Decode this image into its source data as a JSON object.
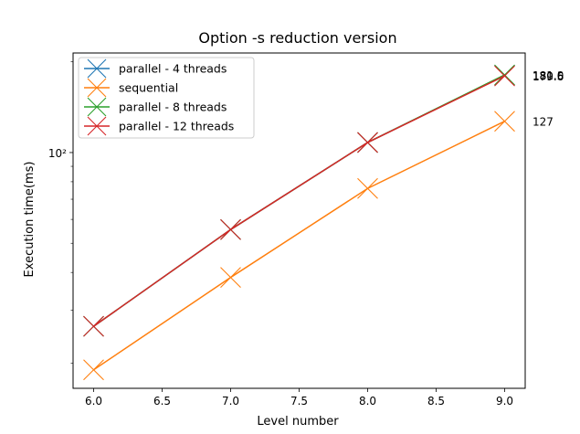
{
  "chart_data": {
    "type": "line",
    "title": "Option -s reduction version",
    "xlabel": "Level number",
    "ylabel": "Execution time(ms)",
    "x": [
      6,
      7,
      8,
      9
    ],
    "xlim": [
      5.85,
      9.15
    ],
    "ylim": [
      16.5,
      214
    ],
    "yscale": "log",
    "x_ticks": [
      "6.0",
      "6.5",
      "7.0",
      "7.5",
      "8.0",
      "8.5",
      "9.0"
    ],
    "y_major_tick_label": "10²",
    "legend_position": "top-left",
    "series": [
      {
        "name": "parallel - 4 threads",
        "color": "#1f77b4",
        "marker": "X",
        "values": [
          26.5,
          55.5,
          108,
          180.5
        ]
      },
      {
        "name": "sequential",
        "color": "#ff7f0e",
        "marker": "X",
        "values": [
          19,
          38.5,
          76,
          127
        ]
      },
      {
        "name": "parallel - 8 threads",
        "color": "#2ca02c",
        "marker": "X",
        "values": [
          26.5,
          55.5,
          108,
          181.0
        ]
      },
      {
        "name": "parallel - 12 threads",
        "color": "#d62728",
        "marker": "X",
        "values": [
          26.5,
          55.5,
          108,
          179.6
        ]
      }
    ],
    "annotations": [
      {
        "x": 9,
        "y": 180.5,
        "text": "180.5"
      },
      {
        "x": 9,
        "y": 127,
        "text": "127"
      },
      {
        "x": 9,
        "y": 181.0,
        "text": "181.0"
      },
      {
        "x": 9,
        "y": 179.6,
        "text": "179.6"
      }
    ]
  }
}
